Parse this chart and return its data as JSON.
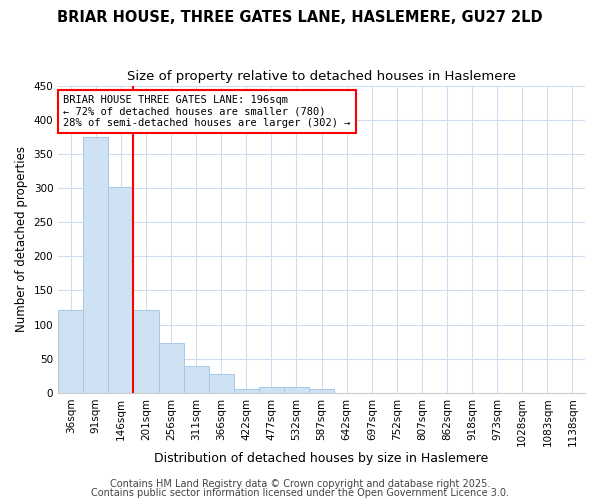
{
  "title1": "BRIAR HOUSE, THREE GATES LANE, HASLEMERE, GU27 2LD",
  "title2": "Size of property relative to detached houses in Haslemere",
  "xlabel": "Distribution of detached houses by size in Haslemere",
  "ylabel": "Number of detached properties",
  "categories": [
    "36sqm",
    "91sqm",
    "146sqm",
    "201sqm",
    "256sqm",
    "311sqm",
    "366sqm",
    "422sqm",
    "477sqm",
    "532sqm",
    "587sqm",
    "642sqm",
    "697sqm",
    "752sqm",
    "807sqm",
    "862sqm",
    "918sqm",
    "973sqm",
    "1028sqm",
    "1083sqm",
    "1138sqm"
  ],
  "values": [
    122,
    375,
    302,
    122,
    73,
    40,
    27,
    5,
    9,
    9,
    5,
    0,
    0,
    0,
    0,
    0,
    0,
    0,
    0,
    0,
    0
  ],
  "bar_color": "#cfe2f3",
  "bar_edge_color": "#a8c8e8",
  "red_line_x": 2.5,
  "annotation_text": "BRIAR HOUSE THREE GATES LANE: 196sqm\n← 72% of detached houses are smaller (780)\n28% of semi-detached houses are larger (302) →",
  "annotation_box_color": "white",
  "annotation_box_edge": "red",
  "ylim": [
    0,
    450
  ],
  "yticks": [
    0,
    50,
    100,
    150,
    200,
    250,
    300,
    350,
    400,
    450
  ],
  "footer1": "Contains HM Land Registry data © Crown copyright and database right 2025.",
  "footer2": "Contains public sector information licensed under the Open Government Licence 3.0.",
  "background_color": "#ffffff",
  "grid_color": "#d0ddf0",
  "title1_fontsize": 10.5,
  "title2_fontsize": 9.5,
  "xlabel_fontsize": 9,
  "ylabel_fontsize": 8.5,
  "tick_fontsize": 7.5,
  "footer_fontsize": 7
}
